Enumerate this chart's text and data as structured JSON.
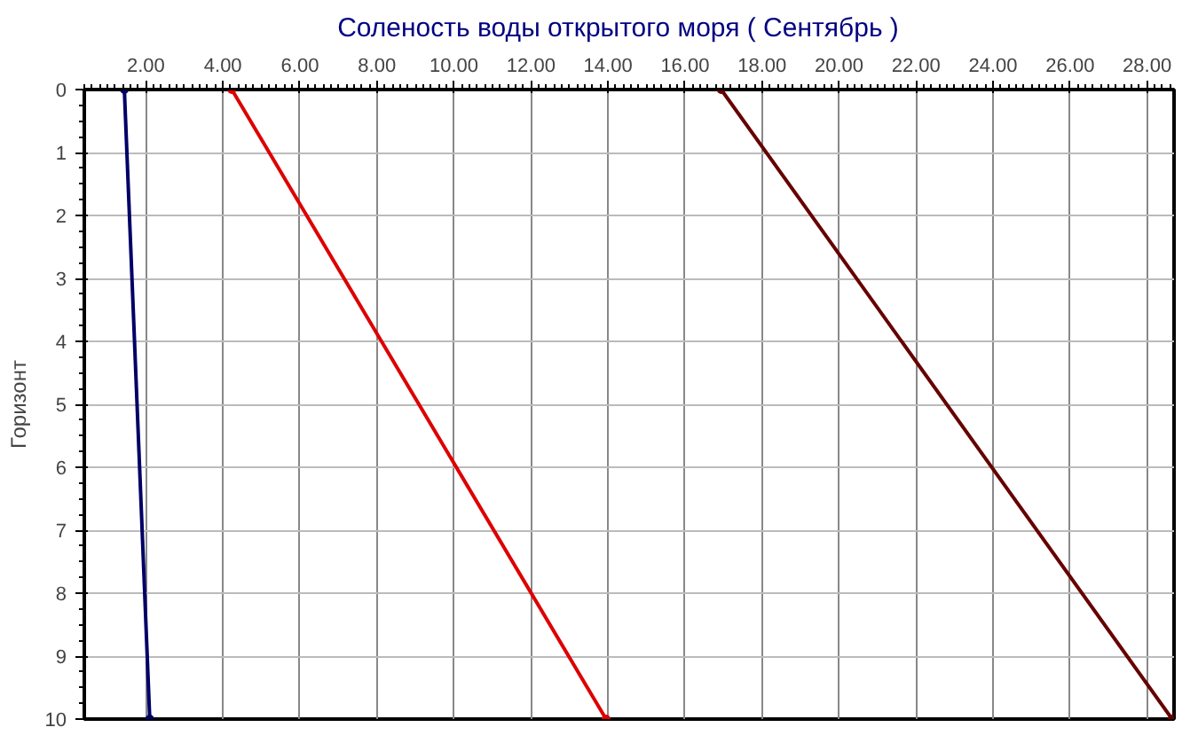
{
  "chart_data": {
    "type": "line",
    "title": "Соленость воды открытого моря    ( Сентябрь )",
    "ylabel": "Горизонт",
    "series": [
      {
        "color": "#000066",
        "x": [
          1.44,
          2.1
        ],
        "values": [
          0,
          10
        ]
      },
      {
        "color": "#dd0000",
        "x": [
          4.23,
          13.95
        ],
        "values": [
          0,
          10
        ]
      },
      {
        "color": "#660000",
        "x": [
          16.94,
          28.65
        ],
        "values": [
          0,
          10
        ]
      }
    ],
    "xlim": [
      0.4,
      28.7
    ],
    "xticks": [
      {
        "value": 2,
        "label": "2.00"
      },
      {
        "value": 4,
        "label": "4.00"
      },
      {
        "value": 6,
        "label": "6.00"
      },
      {
        "value": 8,
        "label": "8.00"
      },
      {
        "value": 10,
        "label": "10.00"
      },
      {
        "value": 12,
        "label": "12.00"
      },
      {
        "value": 14,
        "label": "14.00"
      },
      {
        "value": 16,
        "label": "16.00"
      },
      {
        "value": 18,
        "label": "18.00"
      },
      {
        "value": 20,
        "label": "20.00"
      },
      {
        "value": 22,
        "label": "22.00"
      },
      {
        "value": 24,
        "label": "24.00"
      },
      {
        "value": 26,
        "label": "26.00"
      },
      {
        "value": 28,
        "label": "28.00"
      }
    ],
    "ylim": [
      10,
      0
    ],
    "yticks": [
      0,
      1,
      2,
      3,
      4,
      5,
      6,
      7,
      8,
      9,
      10
    ],
    "grid": true,
    "marker": "circle",
    "line_style": "solid"
  }
}
